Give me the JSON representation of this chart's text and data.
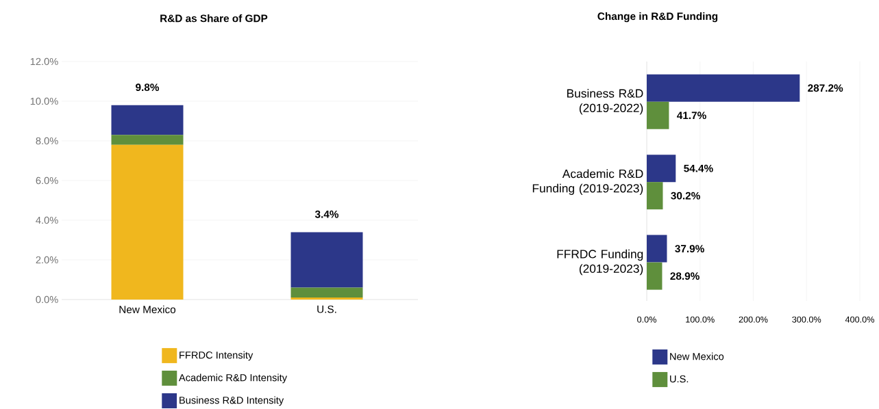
{
  "chart_data": [
    {
      "type": "bar",
      "stacked": true,
      "title": "R&D as Share of GDP",
      "categories": [
        "New Mexico",
        "U.S."
      ],
      "series": [
        {
          "name": "FFRDC Intensity",
          "color": "#f0b71e",
          "values": [
            7.8,
            0.1
          ]
        },
        {
          "name": "Academic R&D Intensity",
          "color": "#5f8f3c",
          "values": [
            0.5,
            0.5
          ]
        },
        {
          "name": "Business R&D Intensity",
          "color": "#2c3789",
          "values": [
            1.5,
            2.8
          ]
        }
      ],
      "totals": [
        "9.8%",
        "3.4%"
      ],
      "ylim": [
        0,
        12
      ],
      "yticks": [
        {
          "value": 0,
          "label": "0.0%"
        },
        {
          "value": 2,
          "label": "2.0%"
        },
        {
          "value": 4,
          "label": "4.0%"
        },
        {
          "value": 6,
          "label": "6.0%"
        },
        {
          "value": 8,
          "label": "8.0%"
        },
        {
          "value": 10,
          "label": "10.0%"
        },
        {
          "value": 12,
          "label": "12.0%"
        }
      ],
      "grid": "y",
      "legend": "bottom"
    },
    {
      "type": "bar",
      "orientation": "horizontal",
      "title": "Change in R&D Funding",
      "categories": [
        "Business R&D (2019-2022)",
        "Academic R&D Funding (2019-2023)",
        "FFRDC Funding (2019-2023)"
      ],
      "series": [
        {
          "name": "New Mexico",
          "color": "#2c3789",
          "values": [
            287.2,
            54.4,
            37.9
          ],
          "value_labels": [
            "287.2%",
            "54.4%",
            "37.9%"
          ]
        },
        {
          "name": "U.S.",
          "color": "#5f8f3c",
          "values": [
            41.7,
            30.2,
            28.9
          ],
          "value_labels": [
            "41.7%",
            "30.2%",
            "28.9%"
          ]
        }
      ],
      "xlim": [
        0,
        400
      ],
      "xticks": [
        {
          "value": 0,
          "label": "0.0%"
        },
        {
          "value": 100,
          "label": "100.0%"
        },
        {
          "value": 200,
          "label": "200.0%"
        },
        {
          "value": 300,
          "label": "300.0%"
        },
        {
          "value": 400,
          "label": "400.0%"
        }
      ],
      "grid": "x",
      "legend": "bottom"
    }
  ]
}
